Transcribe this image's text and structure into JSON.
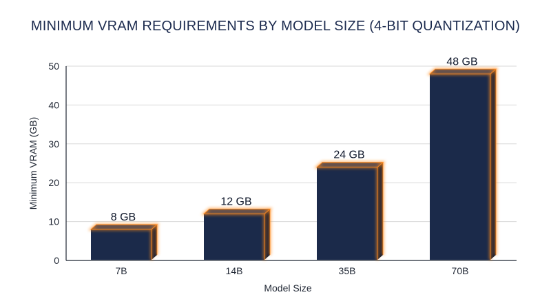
{
  "colors": {
    "bar_front": "#1b2a4a",
    "bar_top": "#2e3c5e",
    "bar_side": "#0f1a33",
    "glow": "#ff8a1e",
    "grid": "#d8d8d8",
    "axis": "#1f2633",
    "title": "#1b2a4e"
  },
  "chart_data": {
    "type": "bar",
    "title": "MINIMUM VRAM REQUIREMENTS BY MODEL SIZE (4-BIT QUANTIZATION)",
    "xlabel": "Model Size",
    "ylabel": "Minimum VRAM (GB)",
    "categories": [
      "7B",
      "14B",
      "35B",
      "70B"
    ],
    "values": [
      8,
      12,
      24,
      48
    ],
    "data_labels": [
      "8 GB",
      "12 GB",
      "24 GB",
      "48 GB"
    ],
    "yticks": [
      0,
      10,
      20,
      30,
      40,
      50
    ],
    "ylim": [
      0,
      50
    ],
    "grid": true,
    "legend": "none"
  }
}
